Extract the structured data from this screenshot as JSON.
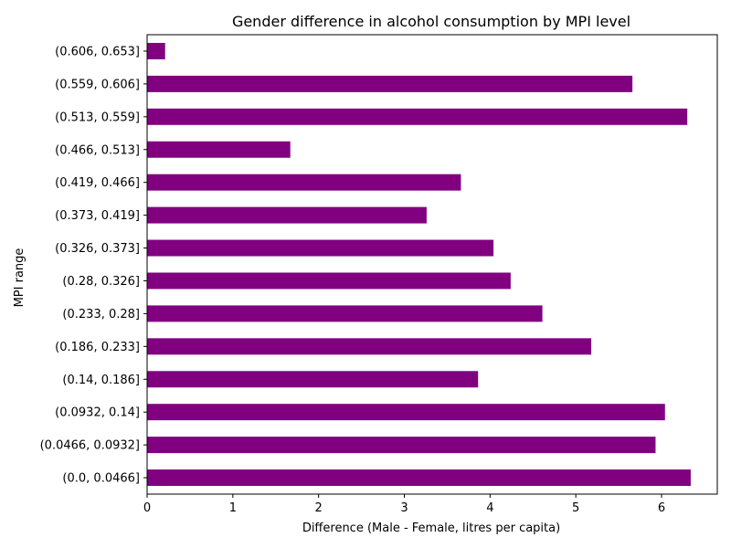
{
  "chart_data": {
    "type": "bar",
    "orientation": "horizontal",
    "title": "Gender difference in alcohol consumption by MPI level",
    "xlabel": "Difference (Male - Female, litres per capita)",
    "ylabel": "MPI range",
    "bar_color": "#800080",
    "xlim": [
      0,
      6.65
    ],
    "xticks": [
      0,
      1,
      2,
      3,
      4,
      5,
      6
    ],
    "grid": false,
    "categories": [
      "(0.0, 0.0466]",
      "(0.0466, 0.0932]",
      "(0.0932, 0.14]",
      "(0.14, 0.186]",
      "(0.186, 0.233]",
      "(0.233, 0.28]",
      "(0.28, 0.326]",
      "(0.326, 0.373]",
      "(0.373, 0.419]",
      "(0.419, 0.466]",
      "(0.466, 0.513]",
      "(0.513, 0.559]",
      "(0.559, 0.606]",
      "(0.606, 0.653]"
    ],
    "values": [
      6.34,
      5.93,
      6.04,
      3.86,
      5.18,
      4.61,
      4.24,
      4.04,
      3.26,
      3.66,
      1.67,
      6.3,
      5.66,
      0.21
    ]
  }
}
